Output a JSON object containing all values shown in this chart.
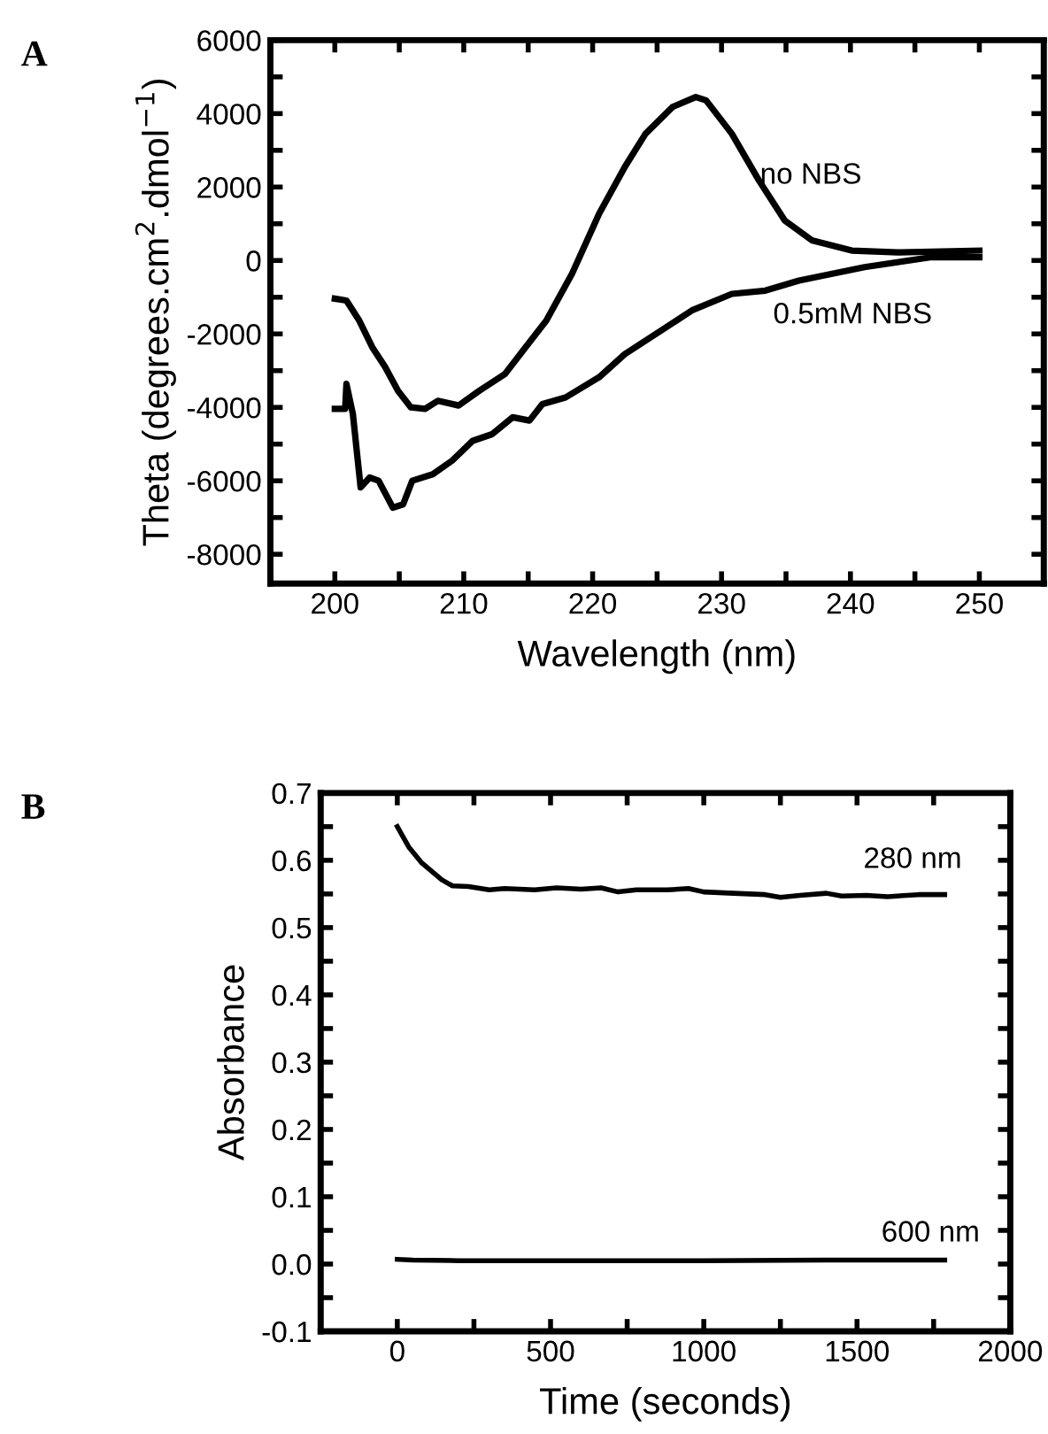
{
  "chart_data": [
    {
      "type": "line",
      "title": "A",
      "xlabel": "Wavelength (nm)",
      "ylabel": "Theta (degrees.cm$^{2}$.dmol$^{−1}$)",
      "xlim": [
        195,
        255
      ],
      "ylim": [
        -8800,
        6000
      ],
      "xticks": [
        {
          "value": 195,
          "label": null
        },
        200,
        {
          "value": 205,
          "label": null
        },
        210,
        {
          "value": 215,
          "label": null
        },
        220,
        {
          "value": 225,
          "label": null
        },
        230,
        {
          "value": 235,
          "label": null
        },
        240,
        {
          "value": 245,
          "label": null
        },
        250
      ],
      "yticks": [
        -8000,
        {
          "value": -7000,
          "label": null
        },
        -6000,
        {
          "value": -5000,
          "label": null
        },
        -4000,
        {
          "value": -3000,
          "label": null
        },
        -2000,
        {
          "value": -1000,
          "label": null
        },
        0,
        {
          "value": 1000,
          "label": null
        },
        2000,
        {
          "value": 3000,
          "label": null
        },
        4000,
        {
          "value": 5000,
          "label": null
        },
        6000
      ],
      "grid": false,
      "legend": false,
      "marker": "none",
      "line_style": "solid",
      "annotations": [
        "no NBS",
        "0.5mM NBS"
      ],
      "series": [
        {
          "color": "#000000",
          "x": [
            200,
            200.9,
            201.9,
            202.9,
            203.9,
            204.9,
            205.9,
            207,
            208,
            209.6,
            211.2,
            213.2,
            214.8,
            216.4,
            218.4,
            220.5,
            222.5,
            224.1,
            226.2,
            228,
            228.8,
            230.8,
            232.9,
            234.9,
            237,
            240.1,
            243.7,
            250
          ],
          "values": [
            -1040,
            -1090,
            -1640,
            -2360,
            -2900,
            -3550,
            -4000,
            -4040,
            -3820,
            -3950,
            -3550,
            -3090,
            -2360,
            -1640,
            -360,
            1270,
            2550,
            3450,
            4180,
            4450,
            4360,
            3450,
            2180,
            1090,
            550,
            270,
            220,
            270
          ]
        },
        {
          "color": "#000000",
          "x": [
            200,
            200.8,
            200.9,
            201.4,
            202,
            202.7,
            203.4,
            204.5,
            205.3,
            206,
            207.6,
            209.1,
            210.7,
            212.2,
            213.8,
            215.1,
            216.1,
            217.9,
            220.5,
            222.5,
            225.7,
            227.7,
            230.8,
            233.4,
            236,
            241.1,
            246.3,
            250
          ],
          "values": [
            -4040,
            -4040,
            -3360,
            -4180,
            -6180,
            -5910,
            -6000,
            -6730,
            -6640,
            -6000,
            -5820,
            -5450,
            -4910,
            -4730,
            -4270,
            -4360,
            -3910,
            -3730,
            -3180,
            -2550,
            -1820,
            -1360,
            -910,
            -820,
            -550,
            -180,
            90,
            90
          ]
        }
      ]
    },
    {
      "type": "line",
      "title": "B",
      "xlabel": "Time (seconds)",
      "ylabel": "Absorbance",
      "xlim": [
        -250,
        2000
      ],
      "ylim": [
        -0.1,
        0.7
      ],
      "xticks": [
        {
          "value": -250,
          "label": null
        },
        0,
        {
          "value": 250,
          "label": null
        },
        500,
        {
          "value": 750,
          "label": null
        },
        1000,
        {
          "value": 1250,
          "label": null
        },
        1500,
        {
          "value": 1750,
          "label": null
        },
        2000
      ],
      "yticks": [
        -0.1,
        {
          "value": -0.05,
          "label": null
        },
        {
          "value": 0,
          "label": "0.0"
        },
        {
          "value": 0.05,
          "label": null
        },
        0.1,
        {
          "value": 0.15,
          "label": null
        },
        0.2,
        {
          "value": 0.25,
          "label": null
        },
        0.3,
        {
          "value": 0.35,
          "label": null
        },
        0.4,
        {
          "value": 0.45,
          "label": null
        },
        0.5,
        {
          "value": 0.55,
          "label": null
        },
        0.6,
        {
          "value": 0.65,
          "label": null
        },
        0.7
      ],
      "grid": false,
      "legend": false,
      "marker": "none",
      "line_style": "solid",
      "annotations": [
        "280 nm",
        "600 nm"
      ],
      "series": [
        {
          "color": "#000000",
          "x": [
            0,
            37,
            80,
            145,
            180,
            232,
            300,
            350,
            448,
            520,
            600,
            665,
            720,
            780,
            881,
            950,
            1000,
            1097,
            1200,
            1250,
            1314,
            1400,
            1450,
            1530,
            1600,
            1700,
            1786
          ],
          "values": [
            0.65,
            0.62,
            0.596,
            0.571,
            0.562,
            0.561,
            0.556,
            0.558,
            0.556,
            0.559,
            0.557,
            0.559,
            0.553,
            0.556,
            0.556,
            0.558,
            0.553,
            0.551,
            0.549,
            0.545,
            0.548,
            0.551,
            0.547,
            0.548,
            0.546,
            0.549,
            0.549
          ]
        },
        {
          "color": "#000000",
          "x": [
            0,
            50,
            200,
            600,
            1000,
            1400,
            1786
          ],
          "values": [
            0.007,
            0.006,
            0.005,
            0.005,
            0.005,
            0.006,
            0.006
          ]
        }
      ]
    }
  ]
}
